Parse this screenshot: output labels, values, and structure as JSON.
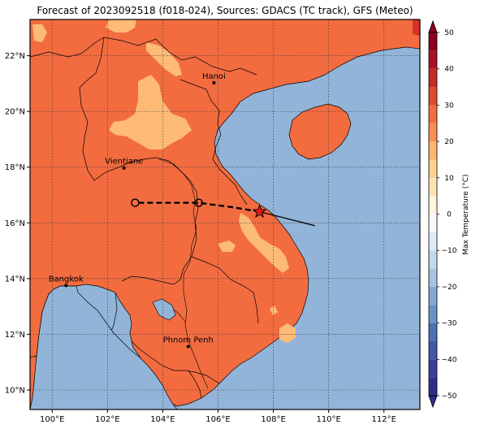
{
  "title": "Forecast of 2023092518 (f018-024), Sources: GDACS (TC track), GFS (Meteo)",
  "map": {
    "lon_range": [
      99.2,
      113.3
    ],
    "lat_range": [
      9.3,
      23.3
    ],
    "lon_ticks": [
      {
        "value": 100,
        "label": "100°E"
      },
      {
        "value": 102,
        "label": "102°E"
      },
      {
        "value": 104,
        "label": "104°E"
      },
      {
        "value": 106,
        "label": "106°E"
      },
      {
        "value": 108,
        "label": "108°E"
      },
      {
        "value": 110,
        "label": "110°E"
      },
      {
        "value": 112,
        "label": "112°E"
      }
    ],
    "lat_ticks": [
      {
        "value": 10,
        "label": "10°N"
      },
      {
        "value": 12,
        "label": "12°N"
      },
      {
        "value": 14,
        "label": "14°N"
      },
      {
        "value": 16,
        "label": "16°N"
      },
      {
        "value": 18,
        "label": "18°N"
      },
      {
        "value": 20,
        "label": "20°N"
      },
      {
        "value": 22,
        "label": "22°N"
      }
    ],
    "colors": {
      "sea": "#92b4d9",
      "land_25_30": "#f26c40",
      "land_20_25": "#fdbb77",
      "land_30_35": "#d73127"
    },
    "cities": [
      {
        "name": "Hanoi",
        "lon": 105.85,
        "lat": 21.03
      },
      {
        "name": "Vientiane",
        "lon": 102.6,
        "lat": 17.97
      },
      {
        "name": "Bangkok",
        "lon": 100.5,
        "lat": 13.75
      },
      {
        "name": "Phnom Penh",
        "lon": 104.92,
        "lat": 11.56
      }
    ],
    "track_past": [
      [
        109.5,
        15.9
      ],
      [
        108.3,
        16.2
      ],
      [
        107.5,
        16.4
      ]
    ],
    "track_forecast": [
      [
        107.5,
        16.4
      ],
      [
        106.6,
        16.55
      ],
      [
        105.3,
        16.72
      ],
      [
        103.0,
        16.72
      ]
    ],
    "forecast_positions": [
      [
        105.3,
        16.72
      ],
      [
        103.0,
        16.72
      ]
    ],
    "current_position": [
      107.5,
      16.4
    ]
  },
  "colorbar": {
    "label": "Max Temperature (°C)",
    "min": -50,
    "max": 50,
    "ticks": [
      {
        "value": 50,
        "label": "50"
      },
      {
        "value": 40,
        "label": "40"
      },
      {
        "value": 30,
        "label": "30"
      },
      {
        "value": 20,
        "label": "20"
      },
      {
        "value": 10,
        "label": "10"
      },
      {
        "value": 0,
        "label": "0"
      },
      {
        "value": -10,
        "label": "−10"
      },
      {
        "value": -20,
        "label": "−20"
      },
      {
        "value": -30,
        "label": "−30"
      },
      {
        "value": -40,
        "label": "−40"
      },
      {
        "value": -50,
        "label": "−50"
      }
    ],
    "bins": [
      {
        "from": -50,
        "to": -45,
        "color": "#2e2e8a"
      },
      {
        "from": -45,
        "to": -40,
        "color": "#3a3f98"
      },
      {
        "from": -40,
        "to": -35,
        "color": "#4158a6"
      },
      {
        "from": -35,
        "to": -30,
        "color": "#4a72b3"
      },
      {
        "from": -30,
        "to": -25,
        "color": "#6793c6"
      },
      {
        "from": -25,
        "to": -20,
        "color": "#82aad2"
      },
      {
        "from": -20,
        "to": -15,
        "color": "#a6c4e0"
      },
      {
        "from": -15,
        "to": -10,
        "color": "#c3d9ec"
      },
      {
        "from": -10,
        "to": -5,
        "color": "#deebf5"
      },
      {
        "from": -5,
        "to": 0,
        "color": "#f3f8fb"
      },
      {
        "from": 0,
        "to": 5,
        "color": "#fff5e0"
      },
      {
        "from": 5,
        "to": 10,
        "color": "#fee4b4"
      },
      {
        "from": 10,
        "to": 15,
        "color": "#fdd08c"
      },
      {
        "from": 15,
        "to": 20,
        "color": "#fdb46f"
      },
      {
        "from": 20,
        "to": 25,
        "color": "#f88e51"
      },
      {
        "from": 25,
        "to": 30,
        "color": "#f26c40"
      },
      {
        "from": 30,
        "to": 35,
        "color": "#de4a2e"
      },
      {
        "from": 35,
        "to": 40,
        "color": "#c62a26"
      },
      {
        "from": 40,
        "to": 45,
        "color": "#a81226"
      },
      {
        "from": 45,
        "to": 50,
        "color": "#8b0021"
      }
    ]
  }
}
